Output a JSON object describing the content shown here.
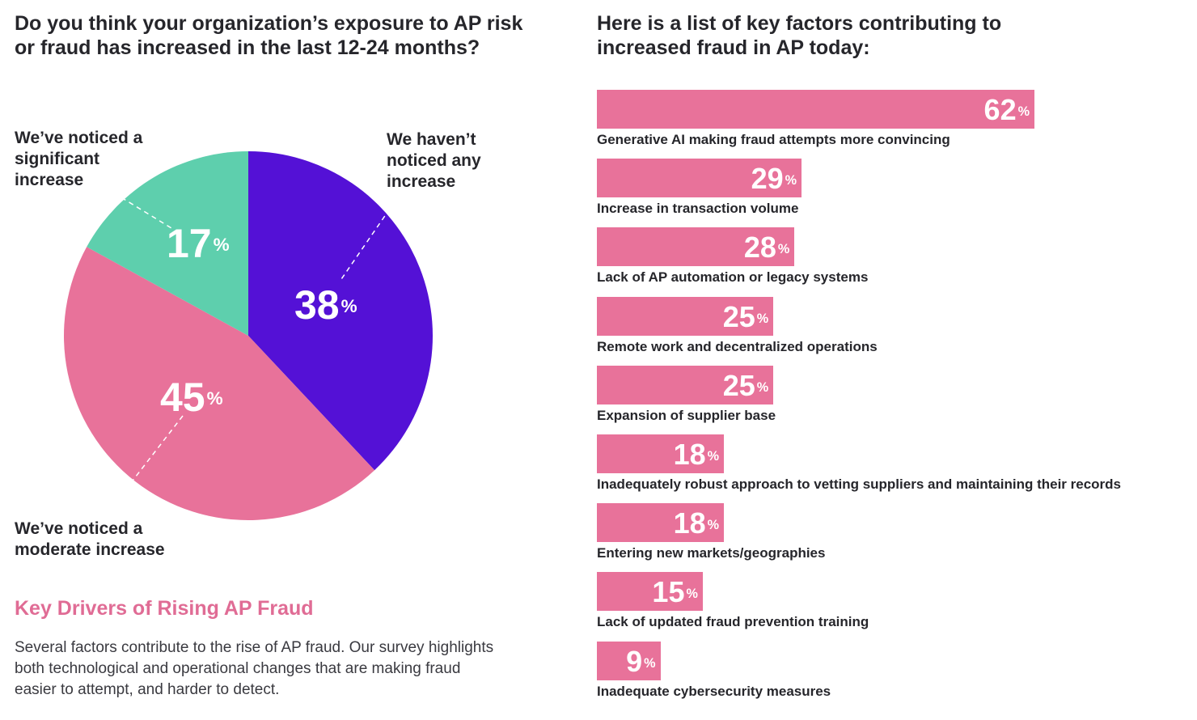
{
  "pie": {
    "question": "Do you think your organization’s exposure to AP risk or fraud has increased in the last 12-24 months?",
    "percent_symbol": "%"
  },
  "section": {
    "heading": "Key Drivers of Rising AP Fraud",
    "body": "Several factors contribute to the rise of AP fraud. Our survey highlights both technological and operational changes that are making fraud easier to attempt, and harder to detect."
  },
  "bars": {
    "title": "Here is a list of key factors contributing to increased fraud in AP today:"
  },
  "colors": {
    "significant": "#5ecfad",
    "none": "#5411d6",
    "moderate": "#e8729a",
    "bar": "#e8729a",
    "heading_accent": "#e06c95"
  },
  "chart_data": [
    {
      "type": "pie",
      "title": "Do you think your organization’s exposure to AP risk or fraud has increased in the last 12-24 months?",
      "slices": [
        {
          "label": "We haven’t noticed any increase",
          "value": 38,
          "display": "38"
        },
        {
          "label": "We’ve noticed a moderate increase",
          "value": 45,
          "display": "45"
        },
        {
          "label": "We’ve noticed a significant increase",
          "value": 17,
          "display": "17"
        }
      ],
      "unit": "%"
    },
    {
      "type": "bar",
      "orientation": "horizontal",
      "title": "Here is a list of key factors contributing to increased fraud in AP today:",
      "categories": [
        "Generative AI making fraud attempts more convincing",
        "Increase in transaction volume",
        "Lack of AP automation or legacy systems",
        "Remote work and decentralized operations",
        "Expansion of supplier base",
        "Inadequately robust approach to vetting suppliers and maintaining their records",
        "Entering new markets/geographies",
        "Lack of updated fraud prevention training",
        "Inadequate cybersecurity measures"
      ],
      "values": [
        62,
        29,
        28,
        25,
        25,
        18,
        18,
        15,
        9
      ],
      "value_labels": [
        "62",
        "29",
        "28",
        "25",
        "25",
        "18",
        "18",
        "15",
        "9"
      ],
      "unit": "%",
      "xlim": [
        0,
        62
      ]
    }
  ]
}
